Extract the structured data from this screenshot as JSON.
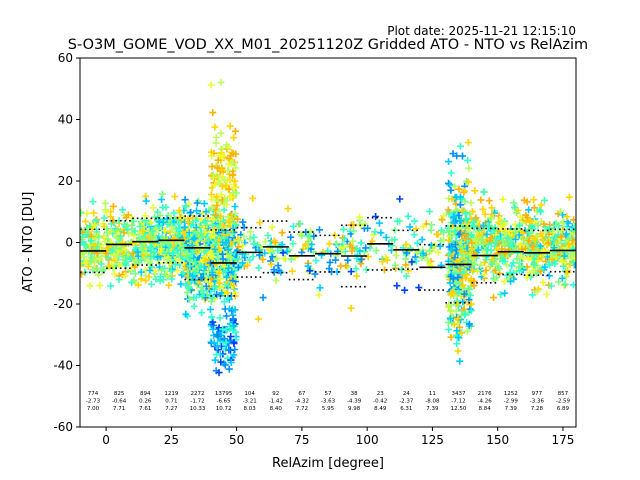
{
  "plot_date": "Plot date: 2025-11-21 12:15:10",
  "chart_data": {
    "type": "scatter",
    "title": "S-O3M_GOME_VOD_XX_M01_20251120Z Gridded ATO - NTO vs RelAzim",
    "xlabel": "RelAzim [degree]",
    "ylabel": "ATO - NTO [DU]",
    "xlim": [
      -10,
      180
    ],
    "ylim": [
      -60,
      60
    ],
    "xticks": [
      0,
      25,
      50,
      75,
      100,
      125,
      150,
      175
    ],
    "yticks": [
      -60,
      -40,
      -20,
      0,
      20,
      40,
      60
    ],
    "grid": false,
    "bins": [
      {
        "x": -5,
        "n": "774",
        "mean": "-2.73",
        "std": "7.00"
      },
      {
        "x": 5,
        "n": "825",
        "mean": "-0.64",
        "std": "7.71"
      },
      {
        "x": 15,
        "n": "894",
        "mean": "0.26",
        "std": "7.61"
      },
      {
        "x": 25,
        "n": "1219",
        "mean": "0.71",
        "std": "7.27"
      },
      {
        "x": 35,
        "n": "2272",
        "mean": "-1.72",
        "std": "10.33"
      },
      {
        "x": 45,
        "n": "13795",
        "mean": "-6.65",
        "std": "10.72"
      },
      {
        "x": 55,
        "n": "104",
        "mean": "-3.21",
        "std": "8.03"
      },
      {
        "x": 65,
        "n": "92",
        "mean": "-1.42",
        "std": "8.40"
      },
      {
        "x": 75,
        "n": "67",
        "mean": "-4.32",
        "std": "7.72"
      },
      {
        "x": 85,
        "n": "57",
        "mean": "-3.63",
        "std": "5.95"
      },
      {
        "x": 95,
        "n": "38",
        "mean": "-4.39",
        "std": "9.98"
      },
      {
        "x": 105,
        "n": "23",
        "mean": "-0.42",
        "std": "8.49"
      },
      {
        "x": 115,
        "n": "24",
        "mean": "-2.37",
        "std": "6.31"
      },
      {
        "x": 125,
        "n": "11",
        "mean": "-8.08",
        "std": "7.39"
      },
      {
        "x": 135,
        "n": "3437",
        "mean": "-7.12",
        "std": "12.50"
      },
      {
        "x": 145,
        "n": "2176",
        "mean": "-4.26",
        "std": "8.84"
      },
      {
        "x": 155,
        "n": "1252",
        "mean": "-2.99",
        "std": "7.39"
      },
      {
        "x": 165,
        "n": "977",
        "mean": "-3.36",
        "std": "7.28"
      },
      {
        "x": 175,
        "n": "857",
        "mean": "-2.59",
        "std": "6.89"
      }
    ],
    "scatter_clusters": [
      {
        "x_range": [
          -10,
          12
        ],
        "y_center": -1,
        "y_spread": 9,
        "count": 260,
        "colors": [
          "#ffd400",
          "#ffb000",
          "#e8ff30",
          "#b8ff60",
          "#7dff80",
          "#40ffb8",
          "#30ffd0"
        ]
      },
      {
        "x_range": [
          12,
          30
        ],
        "y_center": -1,
        "y_spread": 10,
        "count": 300,
        "colors": [
          "#30ffd0",
          "#40ffb8",
          "#7dff80",
          "#b8ff60",
          "#e8ff30",
          "#ffd400",
          "#00c8ff"
        ]
      },
      {
        "x_range": [
          30,
          50
        ],
        "y_center": -4,
        "y_spread": 14,
        "count": 520,
        "colors": [
          "#00c8ff",
          "#0090ff",
          "#30ffd0",
          "#40ffb8",
          "#7dff80",
          "#ffd400",
          "#e8ff30"
        ]
      },
      {
        "x_range": [
          40,
          50
        ],
        "y_center": 20,
        "y_spread": 16,
        "count": 120,
        "colors": [
          "#ffd400",
          "#ffb000",
          "#e8ff30",
          "#b8ff60"
        ]
      },
      {
        "x_range": [
          40,
          50
        ],
        "y_center": -30,
        "y_spread": 8,
        "count": 80,
        "colors": [
          "#00c8ff",
          "#0090ff",
          "#30ffd0",
          "#0040ff"
        ]
      },
      {
        "x_range": [
          50,
          130
        ],
        "y_center": -2,
        "y_spread": 8,
        "count": 240,
        "colors": [
          "#30ffd0",
          "#40ffb8",
          "#7dff80",
          "#b8ff60",
          "#e8ff30",
          "#ffd400",
          "#ffb000",
          "#00c8ff",
          "#0090ff"
        ]
      },
      {
        "x_range": [
          50,
          130
        ],
        "y_center": -8,
        "y_spread": 16,
        "count": 30,
        "colors": [
          "#0040ff",
          "#0090ff",
          "#00c8ff",
          "#ffd400"
        ]
      },
      {
        "x_range": [
          131,
          140
        ],
        "y_center": -5,
        "y_spread": 22,
        "count": 360,
        "colors": [
          "#7dff80",
          "#b8ff60",
          "#30ffd0",
          "#00c8ff",
          "#0090ff",
          "#ffd400",
          "#ffb000"
        ]
      },
      {
        "x_range": [
          140,
          180
        ],
        "y_center": -1,
        "y_spread": 10,
        "count": 560,
        "colors": [
          "#30ffd0",
          "#40ffb8",
          "#7dff80",
          "#b8ff60",
          "#e8ff30",
          "#ffd400",
          "#ffb000",
          "#00c8ff"
        ]
      }
    ]
  }
}
